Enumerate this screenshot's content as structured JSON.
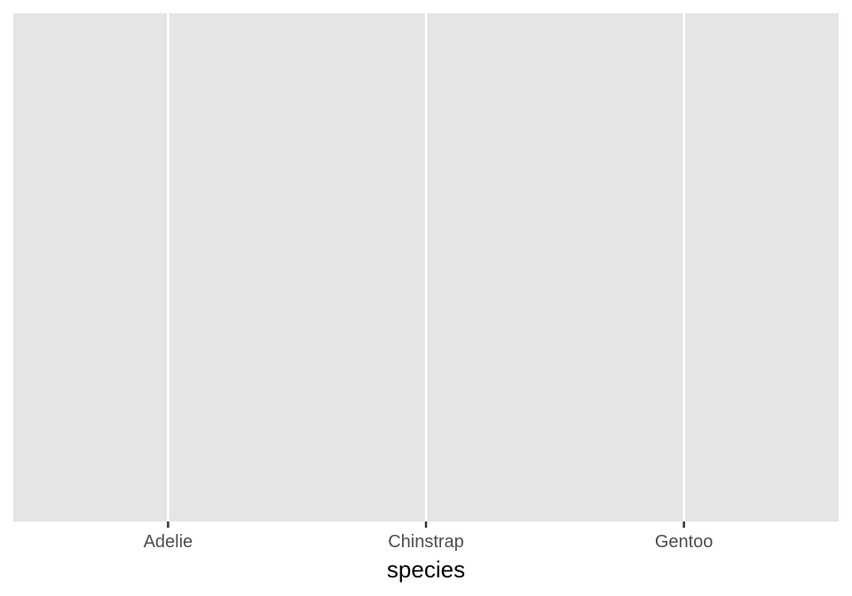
{
  "chart_data": {
    "type": "bar",
    "categories": [
      "Adelie",
      "Chinstrap",
      "Gentoo"
    ],
    "series": [],
    "xlabel": "species",
    "ylabel": "",
    "grid": true,
    "panel_background": "#e5e5e5",
    "grid_color": "#ffffff",
    "tick_color": "#333333",
    "tick_label_color": "#4d4d4d"
  }
}
